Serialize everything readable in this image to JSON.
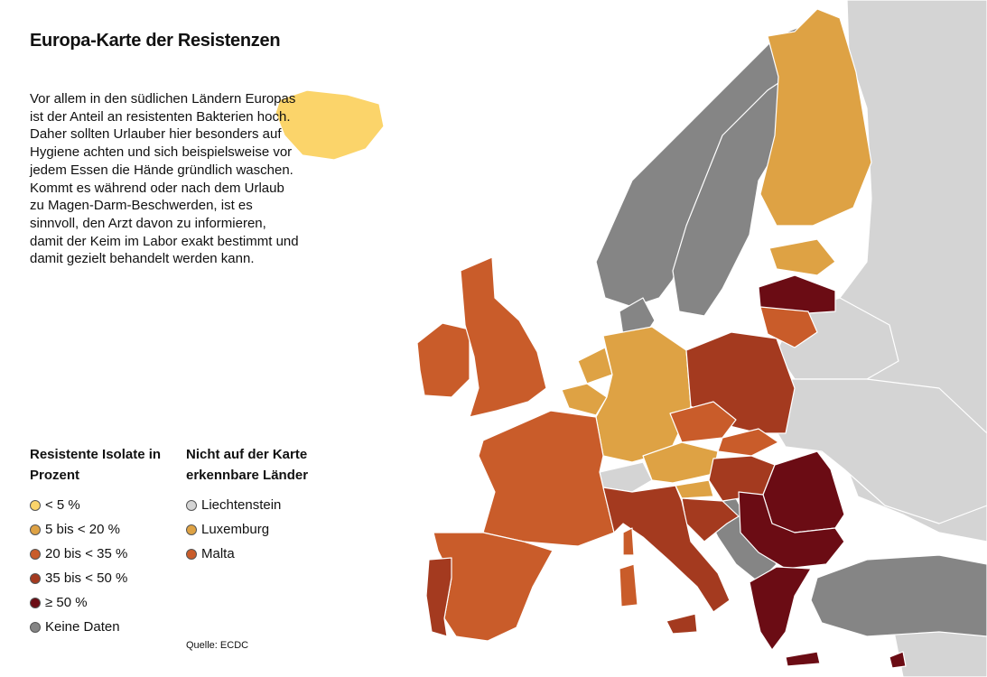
{
  "title": "Europa-Karte der Resistenzen",
  "intro": "Vor allem in den südlichen Ländern Europas ist der Anteil an resistenten Bakterien hoch. Daher sollten Urlauber hier besonders auf Hygiene achten und sich beispielsweise vor jedem Essen die Hände gründlich waschen. Kommt es während oder nach dem Urlaub zu Magen-Darm-Beschwerden, ist es sinnvoll, den Arzt davon zu informieren, damit der Keim im Labor exakt bestimmt und damit gezielt behandelt werden kann.",
  "colors": {
    "lt5": "#fbd46a",
    "5to20": "#dea244",
    "20to35": "#c95c2a",
    "35to50": "#a43a1f",
    "gte50": "#6b0c14",
    "nodata": "#858585",
    "noneu": "#d4d4d4",
    "sea": "#ffffff"
  },
  "legend": {
    "title": "Resistente Isolate in Prozent",
    "items": [
      {
        "label": "< 5 %",
        "color": "#fbd46a"
      },
      {
        "label": "5 bis < 20 %",
        "color": "#dea244"
      },
      {
        "label": "20 bis < 35 %",
        "color": "#c95c2a"
      },
      {
        "label": "35 bis < 50 %",
        "color": "#a43a1f"
      },
      {
        "label": "≥ 50 %",
        "color": "#6b0c14"
      },
      {
        "label": "Keine Daten",
        "color": "#858585"
      }
    ]
  },
  "small_countries": {
    "title": "Nicht auf der Karte erkennbare Länder",
    "items": [
      {
        "label": "Liechtenstein",
        "color": "#d4d4d4"
      },
      {
        "label": "Luxemburg",
        "color": "#dea244"
      },
      {
        "label": "Malta",
        "color": "#c95c2a"
      }
    ]
  },
  "source": "Quelle: ECDC"
}
